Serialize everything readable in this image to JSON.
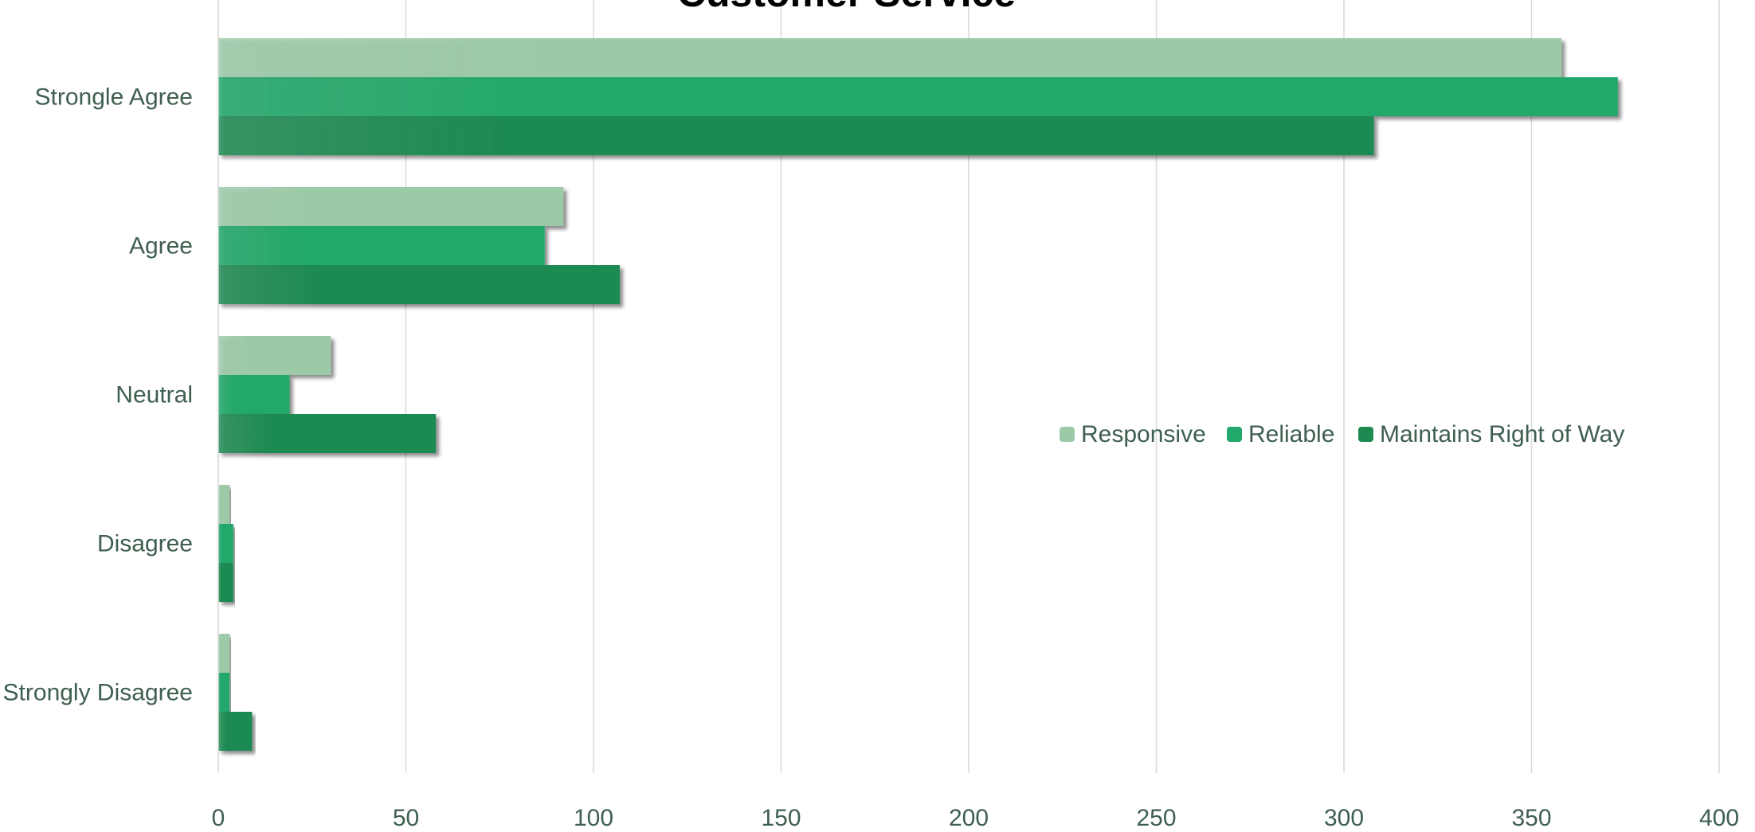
{
  "chart_data": {
    "type": "bar",
    "orientation": "horizontal",
    "title": "Customer Service",
    "categories": [
      "Strongle Agree",
      "Agree",
      "Neutral",
      "Disagree",
      "Strongly Disagree"
    ],
    "series": [
      {
        "name": "Responsive",
        "color": "#9ccaa8",
        "values": [
          358,
          92,
          30,
          3,
          3
        ]
      },
      {
        "name": "Reliable",
        "color": "#22a86a",
        "values": [
          373,
          87,
          19,
          4,
          3
        ]
      },
      {
        "name": "Maintains Right of Way",
        "color": "#1d8a52",
        "values": [
          308,
          107,
          58,
          4,
          9
        ]
      }
    ],
    "xlim": [
      0,
      400
    ],
    "xticks": [
      0,
      50,
      100,
      150,
      200,
      250,
      300,
      350,
      400
    ],
    "grid": true,
    "legend": "center-right",
    "colors": {
      "axis_text": "#3f5f4f",
      "grid": "#d9d9d9"
    }
  }
}
